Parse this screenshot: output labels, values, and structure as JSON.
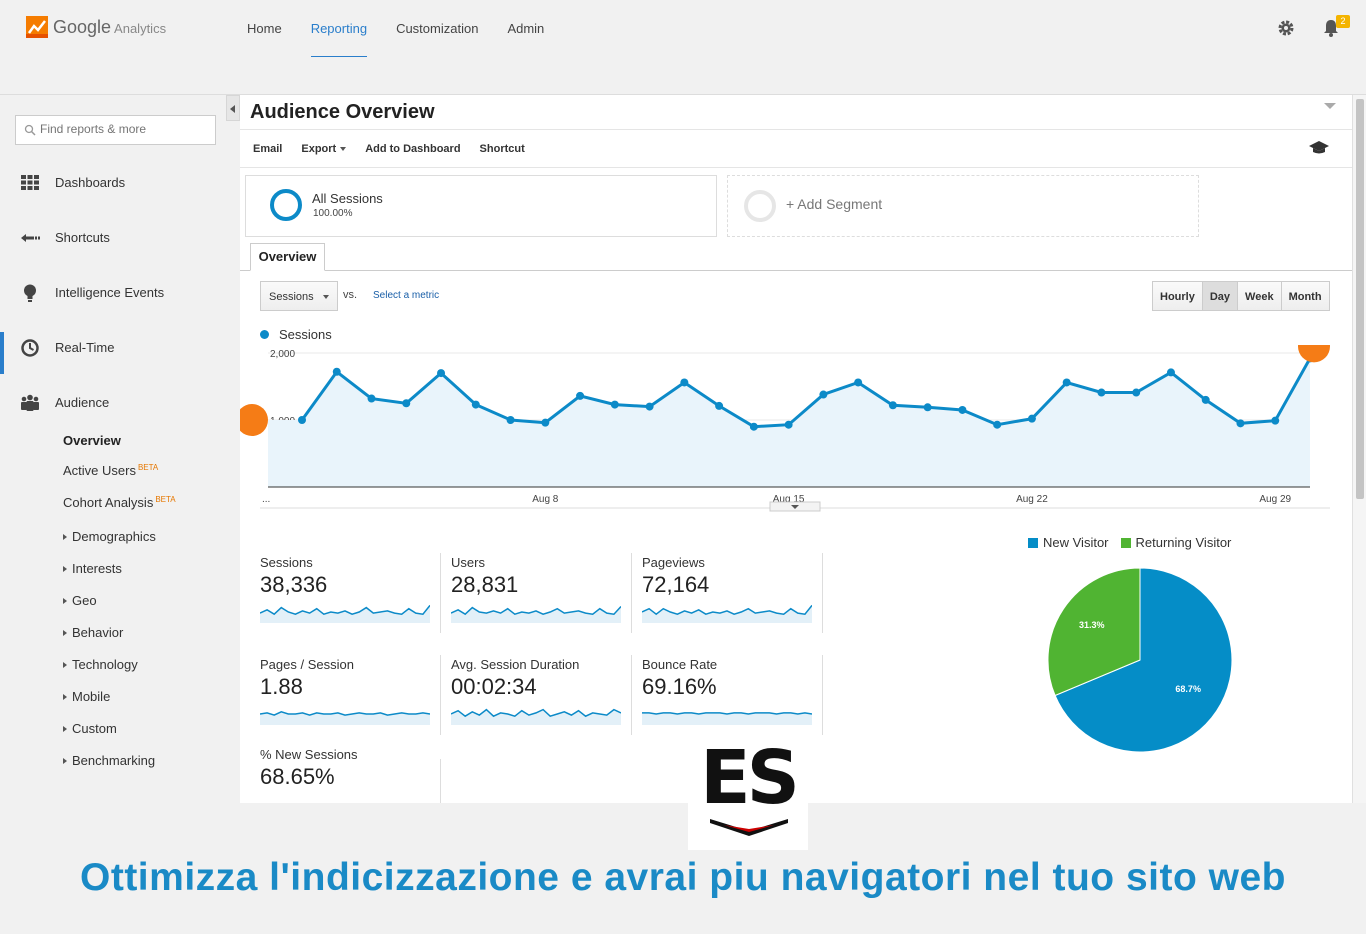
{
  "app": {
    "brand": "Google",
    "product": "Analytics"
  },
  "nav": {
    "items": [
      "Home",
      "Reporting",
      "Customization",
      "Admin"
    ],
    "active": "Reporting",
    "notifications": "2"
  },
  "sidebar": {
    "search_placeholder": "Find reports & more",
    "items": [
      {
        "label": "Dashboards",
        "icon": "grid-icon"
      },
      {
        "label": "Shortcuts",
        "icon": "shortcut-arrow-icon"
      },
      {
        "label": "Intelligence Events",
        "icon": "lightbulb-icon"
      },
      {
        "label": "Real-Time",
        "icon": "clock-icon"
      },
      {
        "label": "Audience",
        "icon": "people-icon"
      }
    ],
    "sub": {
      "overview": "Overview",
      "active_users": "Active Users",
      "cohort": "Cohort Analysis",
      "beta": "BETA",
      "expandable": [
        "Demographics",
        "Interests",
        "Geo",
        "Behavior",
        "Technology",
        "Mobile",
        "Custom",
        "Benchmarking"
      ]
    }
  },
  "page": {
    "title": "Audience Overview",
    "toolbar": [
      "Email",
      "Export",
      "Add to Dashboard",
      "Shortcut"
    ],
    "segment": {
      "name": "All Sessions",
      "pct": "100.00%"
    },
    "add_segment": "+ Add Segment",
    "tab": "Overview",
    "metric": "Sessions",
    "vs": "vs.",
    "select_metric": "Select a metric",
    "granularity": [
      "Hourly",
      "Day",
      "Week",
      "Month"
    ],
    "granularity_selected": "Day"
  },
  "chart_data": {
    "type": "line",
    "series": [
      {
        "name": "Sessions",
        "values": [
          1000,
          1720,
          1320,
          1250,
          1700,
          1230,
          1000,
          960,
          1360,
          1230,
          1200,
          1560,
          1210,
          900,
          930,
          1380,
          1560,
          1220,
          1190,
          1150,
          930,
          1020,
          1560,
          1410,
          1410,
          1710,
          1300,
          950,
          990,
          1920
        ]
      }
    ],
    "y_ticks": [
      "2,000",
      "1,000"
    ],
    "x_ticks": [
      "...",
      "Aug 8",
      "Aug 15",
      "Aug 22",
      "Aug 29"
    ],
    "ylim": [
      0,
      2000
    ],
    "color": "#0c8ac8"
  },
  "scorecards": [
    {
      "label": "Sessions",
      "value": "38,336"
    },
    {
      "label": "Users",
      "value": "28,831"
    },
    {
      "label": "Pageviews",
      "value": "72,164"
    },
    {
      "label": "Pages / Session",
      "value": "1.88"
    },
    {
      "label": "Avg. Session Duration",
      "value": "00:02:34"
    },
    {
      "label": "Bounce Rate",
      "value": "69.16%"
    },
    {
      "label": "% New Sessions",
      "value": "68.65%"
    }
  ],
  "pie": {
    "legend": [
      "New Visitor",
      "Returning Visitor"
    ],
    "slices": [
      {
        "label": "68.7%",
        "value": 68.7,
        "color": "#058dc7"
      },
      {
        "label": "31.3%",
        "value": 31.3,
        "color": "#50b432"
      }
    ]
  },
  "overlay": {
    "logo_text": "ES",
    "tagline": "Ottimizza l'indicizzazione e avrai piu navigatori nel tuo sito web"
  }
}
